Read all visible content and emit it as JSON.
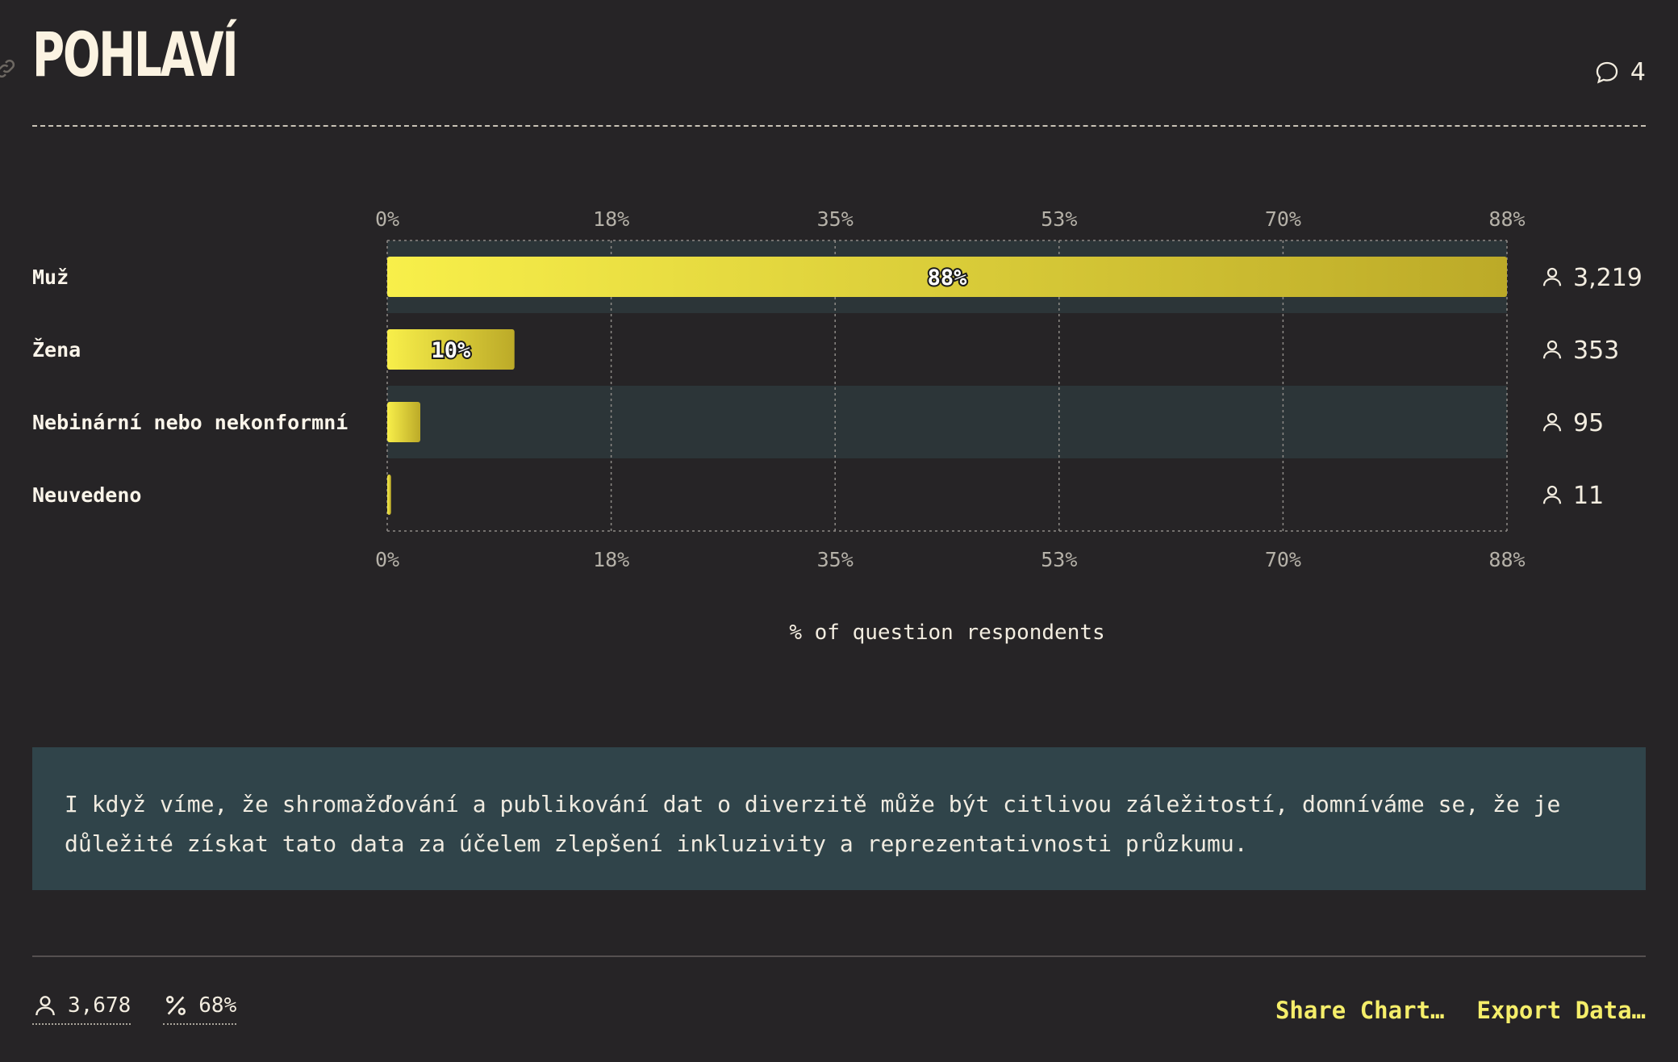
{
  "title": "POHLAVÍ",
  "comments": {
    "count": "4",
    "icon": "comment-icon"
  },
  "chart_data": {
    "type": "bar",
    "orientation": "horizontal",
    "categories": [
      "Muž",
      "Žena",
      "Nebinární nebo nekonformní",
      "Neuvedeno"
    ],
    "values": [
      88,
      10,
      2.6,
      0.3
    ],
    "value_labels": [
      "88%",
      "10%",
      "",
      ""
    ],
    "counts": [
      "3,219",
      "353",
      "95",
      "11"
    ],
    "ticks": [
      "0%",
      "18%",
      "35%",
      "53%",
      "70%",
      "88%"
    ],
    "tick_values": [
      0,
      17.6,
      35.2,
      52.8,
      70.4,
      88
    ],
    "xlim": [
      0,
      88
    ],
    "xlabel": "% of question respondents",
    "grid": true,
    "colors": {
      "bar_start": "#f8ef4a",
      "bar_end": "#bcaa28",
      "band": "#2c3538",
      "grid": "#8d8a86",
      "tick_text": "#b5b1a8"
    }
  },
  "note": "I když víme, že shromažďování a publikování dat o diverzitě může být citlivou záležitostí, domníváme se, že je důležité získat tato data za účelem zlepšení inkluzivity a reprezentativnosti průzkumu.",
  "footer": {
    "respondents": "3,678",
    "percent": "68%",
    "share_label": "Share Chart…",
    "export_label": "Export Data…"
  }
}
